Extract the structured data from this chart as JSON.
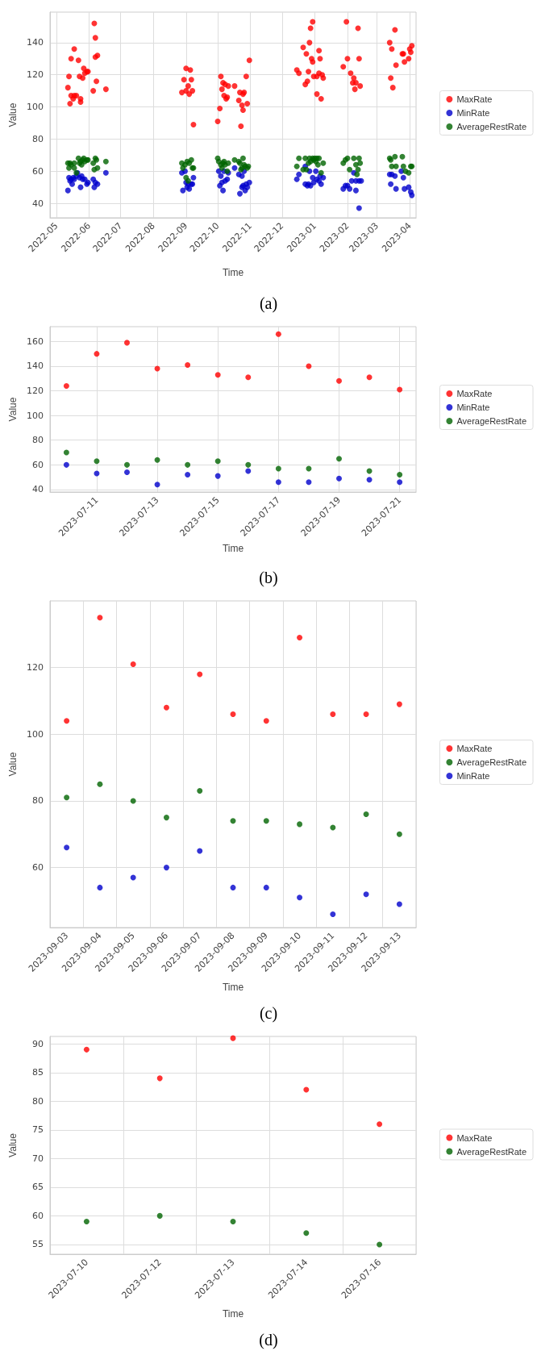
{
  "chart_data": [
    {
      "type": "scatter",
      "xlabel": "Time",
      "ylabel": "Value",
      "annotations": [
        "(a)"
      ],
      "xlim": [
        "2022-04-25",
        "2023-04-07"
      ],
      "xticks": [
        "2022-05",
        "2022-06",
        "2022-07",
        "2022-08",
        "2022-09",
        "2022-10",
        "2022-11",
        "2022-12",
        "2023-01",
        "2023-02",
        "2023-03",
        "2023-04"
      ],
      "ylim": [
        31,
        159
      ],
      "yticks": [
        40,
        60,
        80,
        100,
        120,
        140
      ],
      "grid": true,
      "legend": "right",
      "marker": "circle",
      "series": [
        {
          "name": "MaxRate",
          "color": "#ff0000",
          "x": [
            "2022-05-12",
            "2022-05-13",
            "2022-05-14",
            "2022-05-15",
            "2022-05-15",
            "2022-05-18",
            "2022-05-18",
            "2022-05-17",
            "2022-05-22",
            "2022-05-20",
            "2022-05-24",
            "2022-05-24",
            "2022-05-23",
            "2022-05-26",
            "2022-05-27",
            "2022-05-28",
            "2022-05-30",
            "2022-05-31",
            "2022-06-05",
            "2022-06-06",
            "2022-06-07",
            "2022-06-07",
            "2022-06-09",
            "2022-06-08",
            "2022-06-17",
            "2022-08-28",
            "2022-08-30",
            "2022-09-01",
            "2022-09-01",
            "2022-09-03",
            "2022-09-04",
            "2022-09-05",
            "2022-09-06",
            "2022-09-07",
            "2022-09-08",
            "2022-10-01",
            "2022-10-03",
            "2022-10-04",
            "2022-10-05",
            "2022-10-06",
            "2022-10-07",
            "2022-10-08",
            "2022-10-09",
            "2022-10-10",
            "2022-10-11",
            "2022-10-17",
            "2022-10-21",
            "2022-10-22",
            "2022-10-23",
            "2022-10-24",
            "2022-10-25",
            "2022-10-26",
            "2022-10-25",
            "2022-10-28",
            "2022-10-29",
            "2022-10-31",
            "2022-12-15",
            "2022-12-17",
            "2022-12-21",
            "2022-12-23",
            "2022-12-24",
            "2022-12-25",
            "2022-12-26",
            "2022-12-27",
            "2022-12-28",
            "2022-12-29",
            "2022-12-30",
            "2022-12-30",
            "2022-12-31",
            "2023-01-03",
            "2023-01-03",
            "2023-01-05",
            "2023-01-05",
            "2023-01-06",
            "2023-01-07",
            "2023-01-08",
            "2023-01-09",
            "2023-01-28",
            "2023-01-31",
            "2023-02-01",
            "2023-02-04",
            "2023-02-07",
            "2023-02-06",
            "2023-02-09",
            "2023-02-08",
            "2023-02-11",
            "2023-02-12",
            "2023-02-13",
            "2023-03-13",
            "2023-03-14",
            "2023-03-15",
            "2023-03-16",
            "2023-03-18",
            "2023-03-19",
            "2023-03-25",
            "2023-03-26",
            "2023-03-27",
            "2023-03-31",
            "2023-04-01",
            "2023-04-02",
            "2023-04-03"
          ],
          "values": [
            112,
            119,
            102,
            130,
            107,
            136,
            107,
            105,
            129,
            107,
            105,
            103,
            119,
            118,
            124,
            121,
            122,
            122,
            110,
            152,
            131,
            143,
            132,
            116,
            111,
            109,
            117,
            110,
            124,
            113,
            108,
            123,
            117,
            110,
            89,
            91,
            99,
            119,
            111,
            115,
            107,
            114,
            105,
            106,
            113,
            113,
            104,
            109,
            88,
            101,
            98,
            109,
            108,
            119,
            102,
            129,
            123,
            121,
            137,
            114,
            133,
            116,
            122,
            140,
            149,
            130,
            153,
            128,
            119,
            108,
            119,
            135,
            121,
            130,
            105,
            120,
            118,
            125,
            153,
            130,
            121,
            118,
            115,
            115,
            111,
            149,
            130,
            113,
            140,
            118,
            136,
            112,
            148,
            126,
            133,
            133,
            128,
            130,
            136,
            134,
            138
          ]
        },
        {
          "name": "MinRate",
          "color": "#0000cc",
          "x": [
            "2022-05-12",
            "2022-05-13",
            "2022-05-14",
            "2022-05-15",
            "2022-05-16",
            "2022-05-17",
            "2022-05-18",
            "2022-05-20",
            "2022-05-21",
            "2022-05-23",
            "2022-05-24",
            "2022-05-25",
            "2022-05-26",
            "2022-05-28",
            "2022-05-30",
            "2022-05-31",
            "2022-06-05",
            "2022-06-06",
            "2022-06-07",
            "2022-06-09",
            "2022-06-17",
            "2022-08-28",
            "2022-08-29",
            "2022-08-31",
            "2022-09-01",
            "2022-09-02",
            "2022-09-03",
            "2022-09-04",
            "2022-09-06",
            "2022-09-07",
            "2022-09-08",
            "2022-10-02",
            "2022-10-03",
            "2022-10-04",
            "2022-10-05",
            "2022-10-06",
            "2022-10-07",
            "2022-10-08",
            "2022-10-10",
            "2022-10-11",
            "2022-10-17",
            "2022-10-21",
            "2022-10-22",
            "2022-10-24",
            "2022-10-24",
            "2022-10-25",
            "2022-10-26",
            "2022-10-27",
            "2022-10-28",
            "2022-10-29",
            "2022-10-31",
            "2022-12-15",
            "2022-12-17",
            "2022-12-23",
            "2022-12-23",
            "2022-12-25",
            "2022-12-26",
            "2022-12-27",
            "2022-12-28",
            "2022-12-30",
            "2022-12-31",
            "2023-01-02",
            "2023-01-03",
            "2023-01-05",
            "2023-01-06",
            "2023-01-07",
            "2023-01-09",
            "2023-01-28",
            "2023-01-30",
            "2023-02-01",
            "2023-02-03",
            "2023-02-05",
            "2023-02-07",
            "2023-02-09",
            "2023-02-09",
            "2023-02-12",
            "2023-02-12",
            "2023-02-14",
            "2023-03-13",
            "2023-03-14",
            "2023-03-15",
            "2023-03-18",
            "2023-03-19",
            "2023-03-24",
            "2023-03-26",
            "2023-03-27",
            "2023-03-31",
            "2023-04-02",
            "2023-04-03"
          ],
          "values": [
            48,
            56,
            54,
            55,
            52,
            56,
            55,
            57,
            59,
            56,
            50,
            57,
            55,
            55,
            52,
            53,
            55,
            50,
            53,
            52,
            59,
            59,
            48,
            60,
            53,
            50,
            52,
            49,
            52,
            52,
            56,
            60,
            51,
            57,
            53,
            48,
            60,
            54,
            55,
            59,
            62,
            58,
            46,
            57,
            50,
            51,
            60,
            48,
            52,
            50,
            53,
            55,
            58,
            63,
            52,
            51,
            52,
            60,
            51,
            56,
            53,
            60,
            55,
            54,
            57,
            52,
            56,
            49,
            51,
            51,
            49,
            54,
            59,
            48,
            54,
            54,
            37,
            54,
            58,
            52,
            58,
            57,
            49,
            60,
            56,
            49,
            50,
            47,
            45
          ]
        },
        {
          "name": "AverageRestRate",
          "color": "#006400",
          "x": [
            "2022-05-12",
            "2022-05-13",
            "2022-05-14",
            "2022-05-15",
            "2022-05-18",
            "2022-05-18",
            "2022-05-20",
            "2022-05-22",
            "2022-05-23",
            "2022-05-24",
            "2022-05-25",
            "2022-05-26",
            "2022-05-27",
            "2022-05-28",
            "2022-05-30",
            "2022-05-31",
            "2022-06-05",
            "2022-06-06",
            "2022-06-07",
            "2022-06-08",
            "2022-06-09",
            "2022-06-17",
            "2022-08-28",
            "2022-08-29",
            "2022-08-31",
            "2022-09-01",
            "2022-09-02",
            "2022-09-03",
            "2022-09-04",
            "2022-09-06",
            "2022-09-07",
            "2022-09-08",
            "2022-10-01",
            "2022-10-02",
            "2022-10-04",
            "2022-10-05",
            "2022-10-06",
            "2022-10-07",
            "2022-10-08",
            "2022-10-10",
            "2022-10-11",
            "2022-10-17",
            "2022-10-21",
            "2022-10-22",
            "2022-10-23",
            "2022-10-24",
            "2022-10-25",
            "2022-10-26",
            "2022-10-27",
            "2022-10-29",
            "2022-10-30",
            "2022-12-15",
            "2022-12-17",
            "2022-12-21",
            "2022-12-23",
            "2022-12-24",
            "2022-12-26",
            "2022-12-27",
            "2022-12-28",
            "2022-12-30",
            "2022-12-31",
            "2023-01-01",
            "2023-01-02",
            "2023-01-03",
            "2023-01-04",
            "2023-01-05",
            "2023-01-07",
            "2023-01-09",
            "2023-01-28",
            "2023-01-30",
            "2023-02-01",
            "2023-02-03",
            "2023-02-07",
            "2023-02-09",
            "2023-02-10",
            "2023-02-11",
            "2023-02-12",
            "2023-02-13",
            "2023-03-13",
            "2023-03-14",
            "2023-03-15",
            "2023-03-18",
            "2023-03-19",
            "2023-03-25",
            "2023-03-26",
            "2023-03-28",
            "2023-03-31",
            "2023-04-02",
            "2023-04-03"
          ],
          "values": [
            65,
            62,
            65,
            64,
            65,
            62,
            59,
            68,
            65,
            66,
            64,
            67,
            68,
            66,
            67,
            67,
            65,
            61,
            68,
            67,
            62,
            66,
            65,
            62,
            64,
            56,
            66,
            54,
            65,
            67,
            62,
            62,
            68,
            66,
            64,
            62,
            65,
            66,
            64,
            60,
            65,
            67,
            66,
            65,
            61,
            62,
            68,
            64,
            63,
            62,
            63,
            63,
            68,
            61,
            68,
            61,
            65,
            68,
            66,
            68,
            67,
            68,
            66,
            68,
            64,
            68,
            59,
            65,
            65,
            67,
            68,
            61,
            68,
            64,
            58,
            61,
            68,
            65,
            68,
            67,
            63,
            69,
            63,
            69,
            63,
            60,
            59,
            63,
            63
          ]
        }
      ]
    },
    {
      "type": "scatter",
      "xlabel": "Time",
      "ylabel": "Value",
      "annotations": [
        "(b)"
      ],
      "xlim": [
        "2023-07-09T11:00",
        "2023-07-21T13:00"
      ],
      "xticks": [
        "2023-07-11",
        "2023-07-13",
        "2023-07-15",
        "2023-07-17",
        "2023-07-19",
        "2023-07-21"
      ],
      "ylim": [
        38,
        172
      ],
      "yticks": [
        40,
        60,
        80,
        100,
        120,
        140,
        160
      ],
      "grid": true,
      "legend": "right",
      "marker": "circle",
      "x": [
        "2023-07-10",
        "2023-07-11",
        "2023-07-12",
        "2023-07-13",
        "2023-07-14",
        "2023-07-15",
        "2023-07-16",
        "2023-07-17",
        "2023-07-18",
        "2023-07-19",
        "2023-07-20",
        "2023-07-21"
      ],
      "series": [
        {
          "name": "MaxRate",
          "color": "#ff0000",
          "values": [
            124,
            150,
            159,
            138,
            141,
            133,
            131,
            166,
            140,
            128,
            131,
            121
          ]
        },
        {
          "name": "MinRate",
          "color": "#0000cc",
          "values": [
            60,
            53,
            54,
            44,
            52,
            51,
            55,
            46,
            46,
            49,
            48,
            46
          ]
        },
        {
          "name": "AverageRestRate",
          "color": "#006400",
          "values": [
            70,
            63,
            60,
            64,
            60,
            63,
            60,
            57,
            57,
            65,
            55,
            52
          ]
        }
      ]
    },
    {
      "type": "scatter",
      "xlabel": "Time",
      "ylabel": "Value",
      "annotations": [
        "(c)"
      ],
      "categories": [
        "2023-09-03",
        "2023-09-04",
        "2023-09-05",
        "2023-09-06",
        "2023-09-07",
        "2023-09-08",
        "2023-09-09",
        "2023-09-10",
        "2023-09-11",
        "2023-09-12",
        "2023-09-13"
      ],
      "ylim": [
        42,
        140
      ],
      "yticks": [
        60,
        80,
        100,
        120
      ],
      "grid": true,
      "legend": "right",
      "marker": "circle",
      "series": [
        {
          "name": "MaxRate",
          "color": "#ff0000",
          "values": [
            104,
            135,
            121,
            108,
            118,
            106,
            104,
            129,
            106,
            106,
            109
          ]
        },
        {
          "name": "AverageRestRate",
          "color": "#006400",
          "values": [
            81,
            85,
            80,
            75,
            83,
            74,
            74,
            73,
            72,
            76,
            70
          ]
        },
        {
          "name": "MinRate",
          "color": "#0000cc",
          "values": [
            66,
            54,
            57,
            60,
            65,
            54,
            54,
            51,
            46,
            52,
            49
          ]
        }
      ]
    },
    {
      "type": "scatter",
      "xlabel": "Time",
      "ylabel": "Value",
      "annotations": [
        "(d)"
      ],
      "categories": [
        "2023-07-10",
        "2023-07-12",
        "2023-07-13",
        "2023-07-14",
        "2023-07-16"
      ],
      "ylim": [
        53.3,
        91.3
      ],
      "yticks": [
        55,
        60,
        65,
        70,
        75,
        80,
        85,
        90
      ],
      "grid": true,
      "legend": "right",
      "marker": "circle",
      "series": [
        {
          "name": "MaxRate",
          "color": "#ff0000",
          "values": [
            89,
            84,
            91,
            82,
            76
          ]
        },
        {
          "name": "AverageRestRate",
          "color": "#006400",
          "values": [
            59,
            60,
            59,
            57,
            55
          ]
        }
      ]
    }
  ]
}
